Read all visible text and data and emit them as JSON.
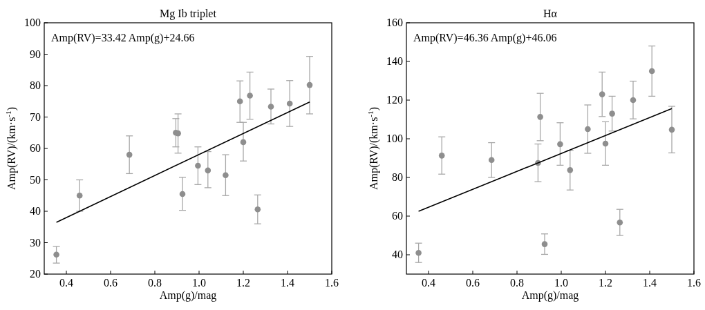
{
  "chart_data": [
    {
      "type": "scatter",
      "title": "Mg Ib triplet",
      "xlabel": "Amp(g)/mag",
      "ylabel": "Amp(RV)/(km·s$^{-1}$)",
      "annotations": [
        "Amp(RV)=33.42 Amp(g)+24.66"
      ],
      "xlim": [
        0.3,
        1.6
      ],
      "xticks": [
        0.4,
        0.6,
        0.8,
        {
          "value": 1.0,
          "label": "1.0"
        },
        1.2,
        1.4,
        1.6
      ],
      "ylim": [
        20,
        100
      ],
      "yticks": [
        20,
        30,
        40,
        50,
        60,
        70,
        80,
        90,
        100
      ],
      "grid": false,
      "series": [
        {
          "color": "#8e8e8e",
          "marker": "circle",
          "x": [
            0.355,
            0.46,
            0.685,
            0.895,
            0.905,
            0.925,
            0.995,
            1.04,
            1.12,
            1.185,
            1.2,
            1.23,
            1.265,
            1.325,
            1.41,
            1.5
          ],
          "values": [
            26.2,
            45,
            58,
            65,
            64.8,
            45.5,
            54.5,
            53,
            51.5,
            75,
            62,
            76.8,
            40.6,
            73.3,
            74.3,
            80.2
          ],
          "errors": [
            [
              23.5,
              28.8
            ],
            [
              40,
              50
            ],
            [
              52,
              64
            ],
            [
              60.5,
              69.5
            ],
            [
              58.5,
              71
            ],
            [
              40.3,
              50.8
            ],
            [
              48.5,
              60.5
            ],
            [
              47.5,
              59
            ],
            [
              45,
              58
            ],
            [
              68.3,
              81.5
            ],
            [
              56,
              68.3
            ],
            [
              69.3,
              84.3
            ],
            [
              36,
              45.2
            ],
            [
              67.8,
              78.9
            ],
            [
              67,
              81.6
            ],
            [
              71,
              89.3
            ]
          ]
        },
        {
          "type": "line",
          "color": "#000000",
          "line_style": "solid",
          "x": [
            0.355,
            1.5
          ],
          "values": [
            36.5,
            74.8
          ]
        }
      ]
    },
    {
      "type": "scatter",
      "title": "Hα",
      "xlabel": "Amp(g)/mag",
      "ylabel": "Amp(RV)/(km·s$^{-1}$)",
      "annotations": [
        "Amp(RV)=46.36 Amp(g)+46.06"
      ],
      "xlim": [
        0.3,
        1.6
      ],
      "xticks": [
        0.4,
        0.6,
        0.8,
        {
          "value": 1.0,
          "label": "1.0"
        },
        1.2,
        1.4,
        1.6
      ],
      "ylim": [
        30,
        160
      ],
      "yticks": [
        40,
        60,
        80,
        100,
        120,
        140,
        160
      ],
      "grid": false,
      "series": [
        {
          "color": "#8e8e8e",
          "marker": "circle",
          "x": [
            0.355,
            0.46,
            0.685,
            0.895,
            0.905,
            0.925,
            0.995,
            1.04,
            1.12,
            1.185,
            1.2,
            1.23,
            1.265,
            1.325,
            1.41,
            1.5
          ],
          "values": [
            41,
            91.3,
            89,
            87.5,
            111.3,
            45.5,
            97.2,
            83.8,
            105,
            123,
            97.5,
            113,
            56.7,
            120,
            135,
            104.7
          ],
          "errors": [
            [
              36,
              46
            ],
            [
              81.7,
              101
            ],
            [
              80,
              98
            ],
            [
              77.8,
              97.3
            ],
            [
              99,
              123.5
            ],
            [
              40.2,
              50.8
            ],
            [
              86.3,
              108.3
            ],
            [
              73.5,
              94
            ],
            [
              92.5,
              117.5
            ],
            [
              111.5,
              134.5
            ],
            [
              86.3,
              108.8
            ],
            [
              104,
              122
            ],
            [
              50,
              63.5
            ],
            [
              110.3,
              129.8
            ],
            [
              122,
              148
            ],
            [
              92.7,
              116.8
            ]
          ]
        },
        {
          "type": "line",
          "color": "#000000",
          "line_style": "solid",
          "x": [
            0.355,
            1.5
          ],
          "values": [
            62.5,
            115.6
          ]
        }
      ]
    }
  ]
}
